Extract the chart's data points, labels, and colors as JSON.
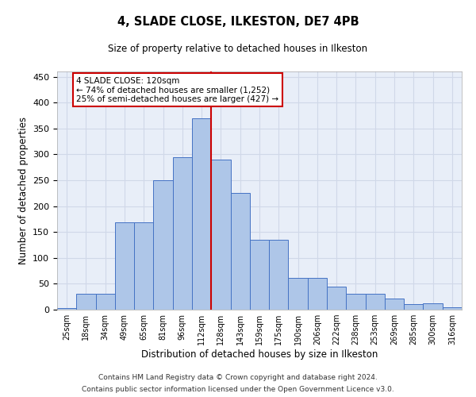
{
  "title1": "4, SLADE CLOSE, ILKESTON, DE7 4PB",
  "title2": "Size of property relative to detached houses in Ilkeston",
  "xlabel": "Distribution of detached houses by size in Ilkeston",
  "ylabel": "Number of detached properties",
  "bar_labels": [
    "25sqm",
    "18sqm",
    "34sqm",
    "49sqm",
    "65sqm",
    "81sqm",
    "96sqm",
    "112sqm",
    "128sqm",
    "143sqm",
    "159sqm",
    "175sqm",
    "190sqm",
    "206sqm",
    "222sqm",
    "238sqm",
    "253sqm",
    "269sqm",
    "285sqm",
    "300sqm",
    "316sqm"
  ],
  "bar_values": [
    3,
    30,
    30,
    168,
    169,
    250,
    295,
    370,
    290,
    225,
    135,
    135,
    62,
    62,
    44,
    30,
    30,
    22,
    11,
    12,
    5
  ],
  "bar_color": "#aec6e8",
  "bar_edge_color": "#4472c4",
  "annotation_text": "4 SLADE CLOSE: 120sqm\n← 74% of detached houses are smaller (1,252)\n25% of semi-detached houses are larger (427) →",
  "annotation_box_color": "#ffffff",
  "annotation_box_edge": "#cc0000",
  "vline_color": "#cc0000",
  "vline_x": 7.5,
  "grid_color": "#d0d8e8",
  "background_color": "#e8eef8",
  "footer1": "Contains HM Land Registry data © Crown copyright and database right 2024.",
  "footer2": "Contains public sector information licensed under the Open Government Licence v3.0.",
  "ylim": [
    0,
    460
  ],
  "yticks": [
    0,
    50,
    100,
    150,
    200,
    250,
    300,
    350,
    400,
    450
  ]
}
